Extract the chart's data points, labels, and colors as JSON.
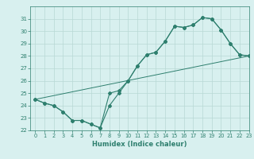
{
  "line1_x": [
    0,
    1,
    2,
    3,
    4,
    5,
    6,
    7,
    8,
    9,
    10,
    11,
    12,
    13,
    14,
    15,
    16,
    17,
    18,
    19,
    20,
    21,
    22,
    23
  ],
  "line1_y": [
    24.5,
    24.2,
    24.0,
    23.5,
    22.8,
    22.8,
    22.5,
    22.2,
    25.0,
    25.2,
    26.0,
    27.2,
    28.1,
    28.3,
    29.2,
    30.4,
    30.3,
    30.5,
    31.1,
    31.0,
    30.1,
    29.0,
    28.1,
    28.0
  ],
  "line2_x": [
    0,
    1,
    2,
    3,
    4,
    5,
    6,
    7,
    8,
    9,
    10,
    11,
    12,
    13,
    14,
    15,
    16,
    17,
    18,
    19,
    20,
    21,
    22,
    23
  ],
  "line2_y": [
    24.5,
    24.2,
    24.0,
    23.5,
    22.8,
    22.8,
    22.5,
    22.2,
    24.0,
    25.0,
    26.0,
    27.2,
    28.1,
    28.3,
    29.2,
    30.4,
    30.3,
    30.5,
    31.1,
    31.0,
    30.1,
    29.0,
    28.1,
    28.0
  ],
  "line3_x": [
    0,
    23
  ],
  "line3_y": [
    24.5,
    28.0
  ],
  "line_color": "#2e7f6e",
  "bg_color": "#d8f0ef",
  "grid_color": "#b8d8d5",
  "xlabel": "Humidex (Indice chaleur)",
  "ylim": [
    22,
    32
  ],
  "xlim": [
    -0.5,
    23
  ],
  "yticks": [
    22,
    23,
    24,
    25,
    26,
    27,
    28,
    29,
    30,
    31
  ],
  "xticks": [
    0,
    1,
    2,
    3,
    4,
    5,
    6,
    7,
    8,
    9,
    10,
    11,
    12,
    13,
    14,
    15,
    16,
    17,
    18,
    19,
    20,
    21,
    22,
    23
  ]
}
